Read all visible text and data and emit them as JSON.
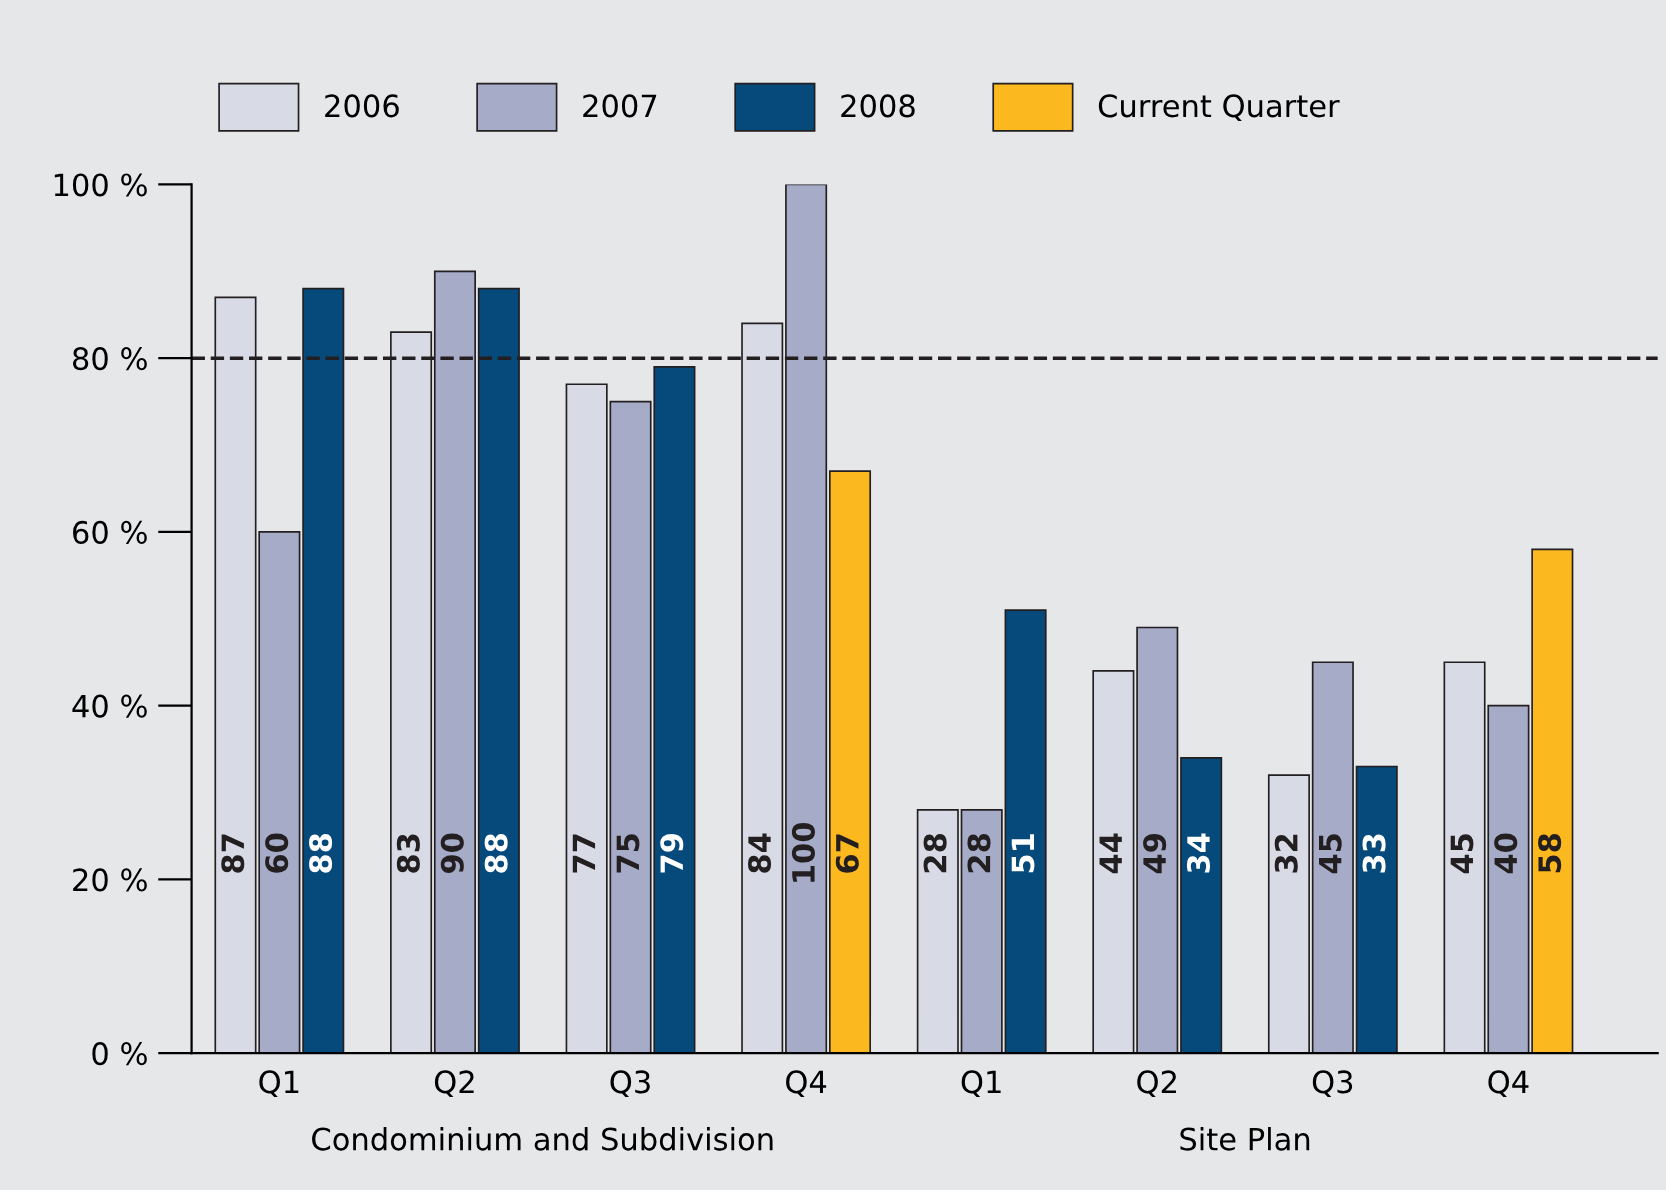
{
  "chart_data": {
    "type": "bar",
    "categories": [
      "Q1",
      "Q2",
      "Q3",
      "Q4",
      "Q1",
      "Q2",
      "Q3",
      "Q4"
    ],
    "series": [
      {
        "name": "2006",
        "color": "#d8dbe6",
        "values": [
          87,
          83,
          77,
          84,
          28,
          44,
          32,
          45
        ]
      },
      {
        "name": "2007",
        "color": "#a6abc7",
        "values": [
          60,
          90,
          75,
          100,
          28,
          49,
          45,
          40
        ]
      },
      {
        "name": "2008",
        "color": "#064a7b",
        "values": [
          88,
          88,
          79,
          null,
          51,
          34,
          33,
          null
        ]
      },
      {
        "name": "Current Quarter",
        "color": "#fbb81f",
        "values": [
          null,
          null,
          null,
          67,
          null,
          null,
          null,
          58
        ]
      }
    ],
    "ylim": [
      0,
      100
    ],
    "yticks": [
      {
        "value": 0,
        "label": "0 %"
      },
      {
        "value": 20,
        "label": "20 %"
      },
      {
        "value": 40,
        "label": "40 %"
      },
      {
        "value": 60,
        "label": "60 %"
      },
      {
        "value": 80,
        "label": "80 %"
      },
      {
        "value": 100,
        "label": "100 %"
      }
    ],
    "ref_lines": [
      {
        "axis": "y",
        "value": 80,
        "line_style": "dashed",
        "color": "#231f20"
      }
    ],
    "annotations": [
      "Condominium and Subdivision",
      "Site Plan"
    ],
    "data_labels": true,
    "legend": "top",
    "grid": false
  }
}
